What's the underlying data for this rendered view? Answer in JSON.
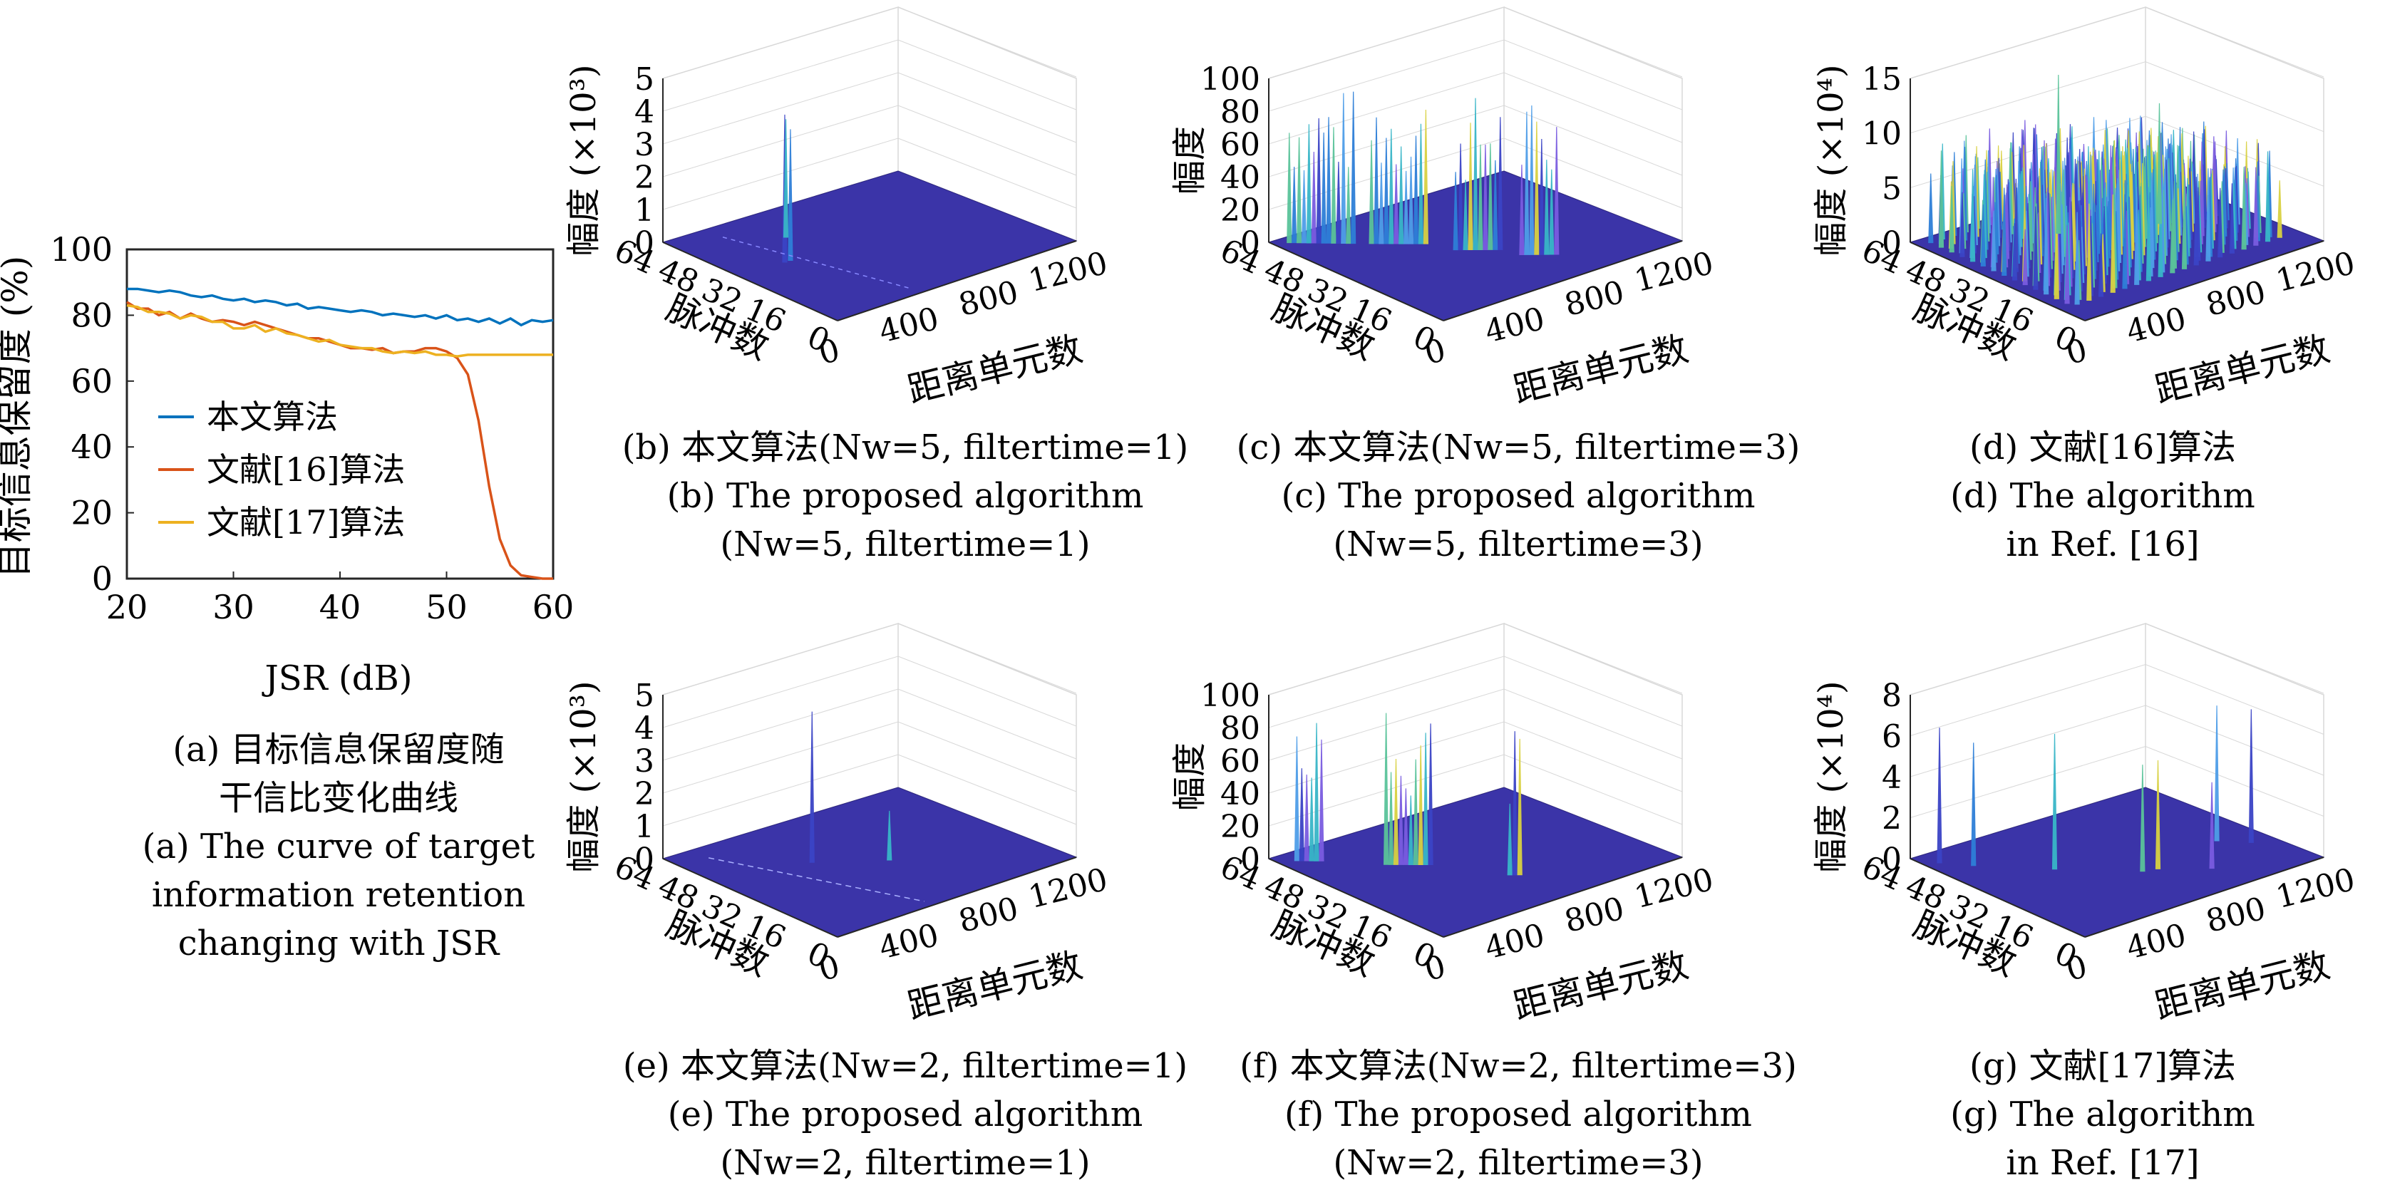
{
  "panel_a": {
    "caption_cn_1": "(a) 目标信息保留度随",
    "caption_cn_2": "干信比变化曲线",
    "caption_en_1": "(a) The curve of target",
    "caption_en_2": "information retention",
    "caption_en_3": "changing with JSR"
  },
  "panel_b": {
    "caption_cn": "(b) 本文算法(Nw=5, filtertime=1)",
    "caption_en_1": "(b) The proposed algorithm",
    "caption_en_2": "(Nw=5, filtertime=1)"
  },
  "panel_c": {
    "caption_cn": "(c) 本文算法(Nw=5, filtertime=3)",
    "caption_en_1": "(c) The proposed algorithm",
    "caption_en_2": "(Nw=5, filtertime=3)"
  },
  "panel_d": {
    "caption_cn": "(d) 文献[16]算法",
    "caption_en_1": "(d) The algorithm",
    "caption_en_2": "in Ref. [16]"
  },
  "panel_e": {
    "caption_cn": "(e) 本文算法(Nw=2, filtertime=1)",
    "caption_en_1": "(e) The proposed algorithm",
    "caption_en_2": "(Nw=2, filtertime=1)"
  },
  "panel_f": {
    "caption_cn": "(f) 本文算法(Nw=2, filtertime=3)",
    "caption_en_1": "(f) The proposed algorithm",
    "caption_en_2": "(Nw=2, filtertime=3)"
  },
  "panel_g": {
    "caption_cn": "(g) 文献[17]算法",
    "caption_en_1": "(g) The algorithm",
    "caption_en_2": "in Ref. [17]"
  },
  "chart_data": [
    {
      "type": "line",
      "ylabel": "目标信息保留度 (%)",
      "xlabel": "JSR (dB)",
      "xlim": [
        20,
        60
      ],
      "ylim": [
        0,
        100
      ],
      "xticks": [
        20,
        30,
        40,
        50,
        60
      ],
      "yticks": [
        0,
        20,
        40,
        60,
        80,
        100
      ],
      "legend_position": "center-left",
      "grid": false,
      "x": [
        20,
        21,
        22,
        23,
        24,
        25,
        26,
        27,
        28,
        29,
        30,
        31,
        32,
        33,
        34,
        35,
        36,
        37,
        38,
        39,
        40,
        41,
        42,
        43,
        44,
        45,
        46,
        47,
        48,
        49,
        50,
        51,
        52,
        53,
        54,
        55,
        56,
        57,
        58,
        59,
        60
      ],
      "series": [
        {
          "name": "本文算法",
          "color": "#0072BD",
          "values": [
            88,
            88,
            87.5,
            87,
            87.5,
            87,
            86,
            85.5,
            86,
            85,
            84.5,
            85,
            84,
            84.5,
            84,
            83,
            83.5,
            82,
            82.5,
            82,
            81.5,
            81,
            81.5,
            81,
            80,
            80.5,
            80,
            79.5,
            80,
            79,
            80,
            78.5,
            79,
            78,
            79,
            77.5,
            79,
            77,
            78.5,
            78,
            78.5
          ]
        },
        {
          "name": "文献[16]算法",
          "color": "#D95319",
          "values": [
            84,
            82,
            82,
            80,
            81,
            79,
            80.5,
            79,
            78,
            78.5,
            78,
            77,
            78,
            77,
            76,
            75,
            74,
            73,
            73,
            72,
            71,
            70,
            70,
            69.5,
            70,
            68.5,
            69,
            69,
            70,
            70,
            69,
            67,
            62,
            48,
            28,
            12,
            4,
            1,
            0.5,
            0,
            0
          ]
        },
        {
          "name": "文献[17]算法",
          "color": "#EDB120",
          "values": [
            83,
            82.5,
            81,
            81,
            80.5,
            79,
            80,
            79.5,
            78,
            78,
            76,
            76,
            77,
            75,
            76,
            74.5,
            74,
            73,
            72,
            72.5,
            71,
            70.5,
            70,
            70,
            69,
            68.5,
            69,
            68.5,
            69,
            68,
            68,
            67.5,
            68,
            68,
            68,
            68,
            68,
            68,
            68,
            68,
            68
          ]
        }
      ]
    },
    {
      "type": "surface3d",
      "panel": "b",
      "zlabel": "幅度 (×10³)",
      "xlabel": "距离单元数",
      "ylabel": "脉冲数",
      "zlim": [
        0,
        5
      ],
      "zticks": [
        0,
        1,
        2,
        3,
        4,
        5
      ],
      "xticks": [
        0,
        400,
        800,
        1200
      ],
      "yticks": [
        64,
        48,
        32,
        16,
        0
      ],
      "peaks": [
        {
          "range_cell": 240,
          "pulse": 36,
          "amplitude": 4.5
        },
        {
          "range_cell": 270,
          "pulse": 36,
          "amplitude": 4.0
        },
        {
          "range_cell": 420,
          "pulse": 48,
          "amplitude": 3.6
        }
      ]
    },
    {
      "type": "surface3d",
      "panel": "c",
      "zlabel": "幅度",
      "xlabel": "距离单元数",
      "ylabel": "脉冲数",
      "zlim": [
        0,
        100
      ],
      "zticks": [
        0,
        20,
        40,
        60,
        80,
        100
      ],
      "xticks": [
        0,
        400,
        800,
        1200
      ],
      "yticks": [
        64,
        48,
        32,
        16,
        0
      ]
    },
    {
      "type": "surface3d",
      "panel": "d",
      "zlabel": "幅度 (×10⁴)",
      "xlabel": "距离单元数",
      "ylabel": "脉冲数",
      "zlim": [
        0,
        15
      ],
      "zticks": [
        0,
        5,
        10,
        15
      ],
      "xticks": [
        0,
        400,
        800,
        1200
      ],
      "yticks": [
        64,
        48,
        32,
        16,
        0
      ]
    },
    {
      "type": "surface3d",
      "panel": "e",
      "zlabel": "幅度 (×10³)",
      "xlabel": "距离单元数",
      "ylabel": "脉冲数",
      "zlim": [
        0,
        5
      ],
      "zticks": [
        0,
        1,
        2,
        3,
        4,
        5
      ],
      "xticks": [
        0,
        400,
        800,
        1200
      ],
      "yticks": [
        64,
        48,
        32,
        16,
        0
      ]
    },
    {
      "type": "surface3d",
      "panel": "f",
      "zlabel": "幅度",
      "xlabel": "距离单元数",
      "ylabel": "脉冲数",
      "zlim": [
        0,
        100
      ],
      "zticks": [
        0,
        20,
        40,
        60,
        80,
        100
      ],
      "xticks": [
        0,
        400,
        800,
        1200
      ],
      "yticks": [
        64,
        48,
        32,
        16,
        0
      ]
    },
    {
      "type": "surface3d",
      "panel": "g",
      "zlabel": "幅度 (×10⁴)",
      "xlabel": "距离单元数",
      "ylabel": "脉冲数",
      "zlim": [
        0,
        8
      ],
      "zticks": [
        0,
        2,
        4,
        6,
        8
      ],
      "xticks": [
        0,
        400,
        800,
        1200
      ],
      "yticks": [
        64,
        48,
        32,
        16,
        0
      ]
    }
  ]
}
